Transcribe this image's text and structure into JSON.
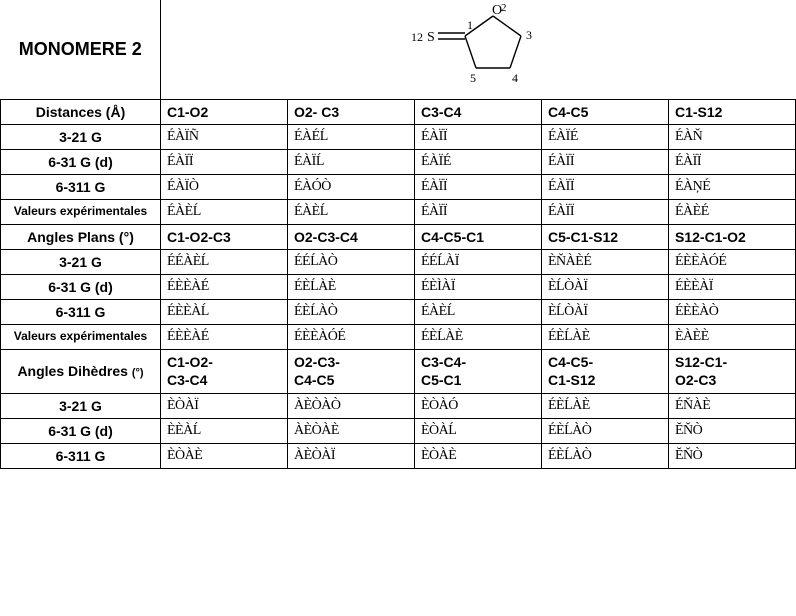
{
  "title": "MONOMERE 2",
  "molecule": {
    "atoms": {
      "S12": "S",
      "C1": "1",
      "O2": "O",
      "N2": "2",
      "C3": "3",
      "C4": "4",
      "C5": "5",
      "L12": "12"
    }
  },
  "sections": {
    "distances": {
      "header": "Distances (Å)",
      "cols": [
        "C1-O2",
        "O2- C3",
        "C3-C4",
        "C4-C5",
        "C1-S12"
      ],
      "rows": [
        {
          "label": "3-21 G",
          "vals": [
            "ÉÀÏÑ",
            "ÉÀÉĹ",
            "ÉÀÏÏ",
            "ÉÀÏÉ",
            "ÉÀŇ"
          ]
        },
        {
          "label": "6-31 G (d)",
          "vals": [
            "ÉÀÏÏ",
            "ÉÀÏĹ",
            "ÉÀÏÉ",
            "ÉÀÏÏ",
            "ÉÀÏÏ"
          ]
        },
        {
          "label": "6-311 G",
          "vals": [
            "ÉÀÏÒ",
            "ÉÀÓÒ",
            "ÉÀÏÏ",
            "ÉÀÏÏ",
            "ÉÀŅÉ"
          ]
        },
        {
          "label": "Valeurs expérimentales",
          "vals": [
            "ÉÀÈĹ",
            "ÉÀÈĹ",
            "ÉÀÏÏ",
            "ÉÀÏÏ",
            "ÉÀÈÉ"
          ]
        }
      ]
    },
    "angles": {
      "header": "Angles Plans (°)",
      "cols": [
        "C1-O2-C3",
        "O2-C3-C4",
        "C4-C5-C1",
        "C5-C1-S12",
        "S12-C1-O2"
      ],
      "rows": [
        {
          "label": "3-21 G",
          "vals": [
            "ÉÉÀÈĹ",
            "ÉÉĹÀÒ",
            "ÉÉĹÀÏ",
            "ÈŇÀÈÉ",
            "ÉÈÈÀÓÉ"
          ]
        },
        {
          "label": "6-31 G (d)",
          "vals": [
            "ÉÈÈÀÉ",
            "ÉÈĹÀÈ",
            "ÉÈÌÀÏ",
            "ÈĹÒÀÏ",
            "ÉÈÈÀÏ"
          ]
        },
        {
          "label": "6-311 G",
          "vals": [
            "ÉÈÈÀĹ",
            "ÉÈĹÀÒ",
            "ÉÀÈĹ",
            "ÈĹÒÀÏ",
            "ÉÈÈÀÒ"
          ]
        },
        {
          "label": "Valeurs expérimentales",
          "vals": [
            "ÉÈÈÀÉ",
            "ÉÈÈÀÓÉ",
            "ÉÈĹÀÈ",
            "ÉÈĹÀÈ",
            "ÈÀÈÈ"
          ]
        }
      ]
    },
    "dihedrals": {
      "header": "Angles Dihèdres",
      "unit": "(°)",
      "cols": [
        "C1-O2-\nC3-C4",
        "O2-C3-\nC4-C5",
        "C3-C4-\nC5-C1",
        "C4-C5-\nC1-S12",
        "S12-C1-\nO2-C3"
      ],
      "rows": [
        {
          "label": "3-21 G",
          "vals": [
            "ÈÒÀÏ",
            "ÀÈÒÀÒ",
            "ÈÒÀÓ",
            "ÉÈĹÀÈ",
            "ÉŇÀÈ"
          ]
        },
        {
          "label": "6-31 G (d)",
          "vals": [
            "ÈÈÀĹ",
            "ÀÈÒÀÈ",
            "ÈÒÀĹ",
            "ÉÈĹÀÒ",
            "ĔŇÒ"
          ]
        },
        {
          "label": "6-311 G",
          "vals": [
            "ÈÒÀÈ",
            "ÀÈÒÀÏ",
            "ÈÒÀÈ",
            "ÉÈĹÀÒ",
            "ĔŇÒ"
          ]
        }
      ]
    }
  }
}
